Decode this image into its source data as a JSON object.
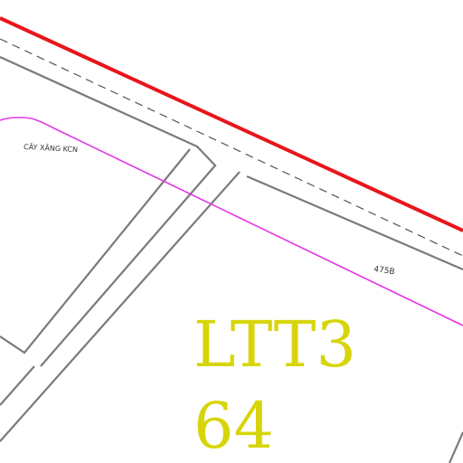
{
  "labels": {
    "road_name": "CÂY XĂNG KCN",
    "lot_number": "475B",
    "lot_code": "LTT3",
    "lot_sub_code": "64"
  },
  "colors": {
    "boundary_red": "#e8151b",
    "road_edge_gray": "#7a7a7a",
    "centerline_dashed": "#555555",
    "property_line_magenta": "#e339e6",
    "lot_text_yellow": "#d7d50a",
    "label_text": "#333333"
  }
}
